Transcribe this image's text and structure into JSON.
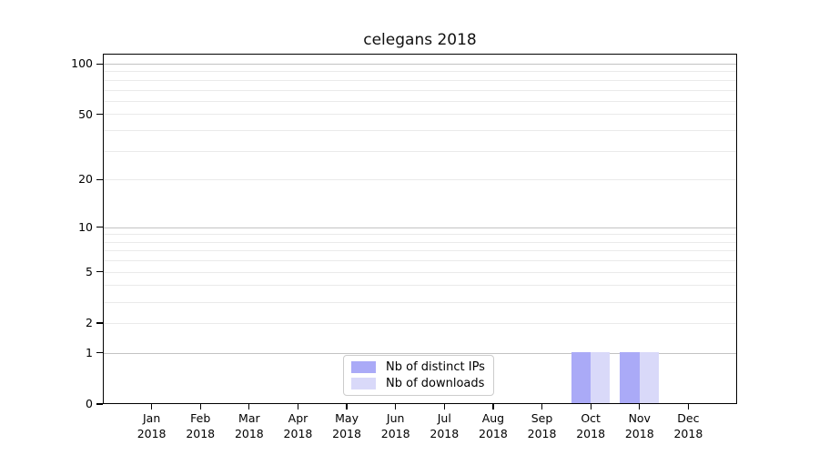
{
  "title": "celegans 2018",
  "colors": {
    "bar_distinct_ips": "#aaaaf7",
    "bar_downloads": "#d9d9f9",
    "grid_major": "#c3c3c3",
    "grid_minor": "#eaeaea",
    "spine": "#000000",
    "legend_border": "#cccccc"
  },
  "legend": {
    "items": [
      {
        "label": "Nb of distinct IPs"
      },
      {
        "label": "Nb of downloads"
      }
    ]
  },
  "chart_data": {
    "type": "bar",
    "title": "celegans 2018",
    "categories": [
      "Jan 2018",
      "Feb 2018",
      "Mar 2018",
      "Apr 2018",
      "May 2018",
      "Jun 2018",
      "Jul 2018",
      "Aug 2018",
      "Sep 2018",
      "Oct 2018",
      "Nov 2018",
      "Dec 2018"
    ],
    "series": [
      {
        "name": "Nb of distinct IPs",
        "color": "#aaaaf7",
        "values": [
          0,
          0,
          0,
          0,
          0,
          0,
          0,
          0,
          0,
          1,
          1,
          0
        ]
      },
      {
        "name": "Nb of downloads",
        "color": "#d9d9f9",
        "values": [
          0,
          0,
          0,
          0,
          0,
          0,
          0,
          0,
          0,
          1,
          1,
          0
        ]
      }
    ],
    "xlabel": "",
    "ylabel": "",
    "y_scale": "log1p",
    "ylim": [
      0,
      115
    ],
    "y_tick_values": [
      0,
      1,
      2,
      5,
      10,
      20,
      50,
      100
    ],
    "y_major_gridlines": [
      1,
      10,
      100
    ],
    "y_minor_gridlines": [
      2,
      3,
      4,
      5,
      6,
      7,
      8,
      9,
      20,
      30,
      40,
      50,
      60,
      70,
      80,
      90
    ],
    "grid": true,
    "legend_position": "lower center (inside axes)"
  }
}
